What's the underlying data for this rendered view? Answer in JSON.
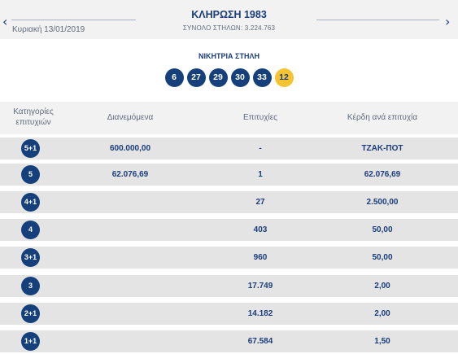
{
  "header": {
    "prev_icon": "‹",
    "next_icon": "›",
    "date": "Κυριακή 13/01/2019",
    "title": "ΚΛΗΡΩΣΗ 1983",
    "subtitle": "ΣΥΝΟΛΟ ΣΤΗΛΩΝ: 3.224.763"
  },
  "winning": {
    "label": "ΝΙΚΗΤΡΙΑ ΣΤΗΛΗ",
    "numbers": [
      "6",
      "27",
      "29",
      "30",
      "33"
    ],
    "joker": "12",
    "colors": {
      "ball": "#15407c",
      "joker": "#f6c433"
    }
  },
  "table": {
    "headers": {
      "category_line1": "Κατηγορίες",
      "category_line2": "επιτυχιών",
      "distributed": "Διανεμόμενα",
      "successes": "Επιτυχίες",
      "prize": "Κέρδη ανά επιτυχία"
    },
    "rows": [
      {
        "category": "5+1",
        "distributed": "600.000,00",
        "successes": "-",
        "prize": "ΤΖΑΚ-ΠΟΤ"
      },
      {
        "category": "5",
        "distributed": "62.076,69",
        "successes": "1",
        "prize": "62.076,69"
      },
      {
        "category": "4+1",
        "distributed": "",
        "successes": "27",
        "prize": "2.500,00"
      },
      {
        "category": "4",
        "distributed": "",
        "successes": "403",
        "prize": "50,00"
      },
      {
        "category": "3+1",
        "distributed": "",
        "successes": "960",
        "prize": "50,00"
      },
      {
        "category": "3",
        "distributed": "",
        "successes": "17.749",
        "prize": "2,00"
      },
      {
        "category": "2+1",
        "distributed": "",
        "successes": "14.182",
        "prize": "2,00"
      },
      {
        "category": "1+1",
        "distributed": "",
        "successes": "67.584",
        "prize": "1,50"
      }
    ]
  }
}
